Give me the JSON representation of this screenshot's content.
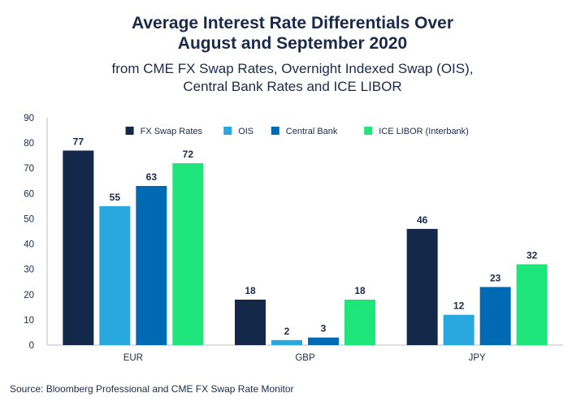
{
  "header": {
    "title_line1": "Average Interest Rate Differentials Over",
    "title_line2": "August and September 2020",
    "subtitle_line1": "from CME FX Swap Rates, Overnight Indexed Swap (OIS),",
    "subtitle_line2": "Central Bank Rates and ICE LIBOR"
  },
  "source": "Source: Bloomberg Professional and CME FX Swap Rate Monitor",
  "chart_data": {
    "type": "bar",
    "categories": [
      "EUR",
      "GBP",
      "JPY"
    ],
    "series": [
      {
        "name": "FX Swap Rates",
        "color": "#14294a",
        "values": [
          77,
          18,
          46
        ]
      },
      {
        "name": "OIS",
        "color": "#29a8e0",
        "values": [
          55,
          2,
          12
        ]
      },
      {
        "name": "Central Bank",
        "color": "#0069b4",
        "values": [
          63,
          3,
          23
        ]
      },
      {
        "name": "ICE LIBOR (Interbank)",
        "color": "#1ee67a",
        "values": [
          72,
          18,
          32
        ]
      }
    ],
    "data_labels": [
      [
        "77",
        "18",
        "46"
      ],
      [
        "55",
        "2",
        "12"
      ],
      [
        "63",
        "3",
        "23"
      ],
      [
        "72",
        "18",
        "32"
      ]
    ],
    "yticks": [
      "0",
      "10",
      "20",
      "30",
      "40",
      "50",
      "60",
      "70",
      "80",
      "90"
    ],
    "ylim": [
      0,
      90
    ],
    "grid": false,
    "legend_position": "top"
  }
}
